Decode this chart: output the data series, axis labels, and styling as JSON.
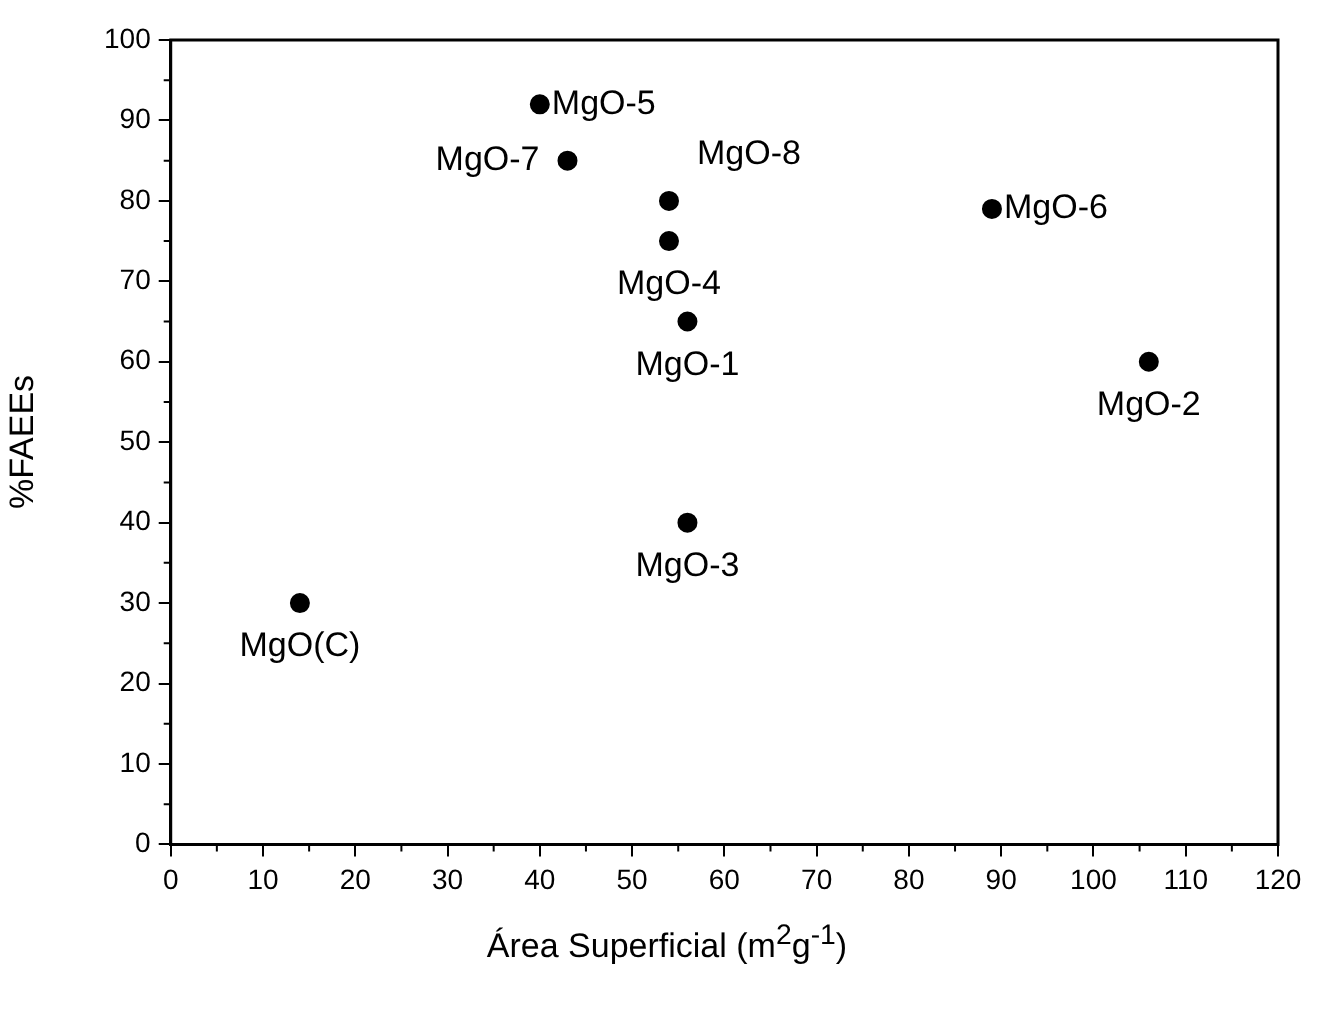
{
  "chart_data": {
    "type": "scatter",
    "xlabel": "Área Superficial (m$^{2}$g$^{-1}$)",
    "ylabel": "%FAEEs",
    "x": [
      40,
      43,
      54,
      54,
      56,
      89,
      106,
      56,
      14
    ],
    "values": [
      92,
      85,
      80,
      75,
      65,
      79,
      60,
      40,
      30
    ],
    "color": "#000000",
    "marker": "circle",
    "xlim": [
      0,
      120
    ],
    "ylim": [
      0,
      100
    ],
    "xticks": [
      0,
      10,
      20,
      30,
      40,
      50,
      60,
      70,
      80,
      90,
      100,
      110,
      120
    ],
    "yticks": [
      0,
      10,
      20,
      30,
      40,
      50,
      60,
      70,
      80,
      90,
      100
    ],
    "annotations": [
      {
        "text": "MgO-5",
        "x": 40,
        "y": 92
      },
      {
        "text": "MgO-7",
        "x": 43,
        "y": 85
      },
      {
        "text": "MgO-8",
        "x": 54,
        "y": 80
      },
      {
        "text": "MgO-4",
        "x": 54,
        "y": 75
      },
      {
        "text": "MgO-1",
        "x": 56,
        "y": 65
      },
      {
        "text": "MgO-6",
        "x": 89,
        "y": 79
      },
      {
        "text": "MgO-2",
        "x": 106,
        "y": 60
      },
      {
        "text": "MgO-3",
        "x": 56,
        "y": 40
      },
      {
        "text": "MgO(C)",
        "x": 14,
        "y": 30
      }
    ]
  }
}
